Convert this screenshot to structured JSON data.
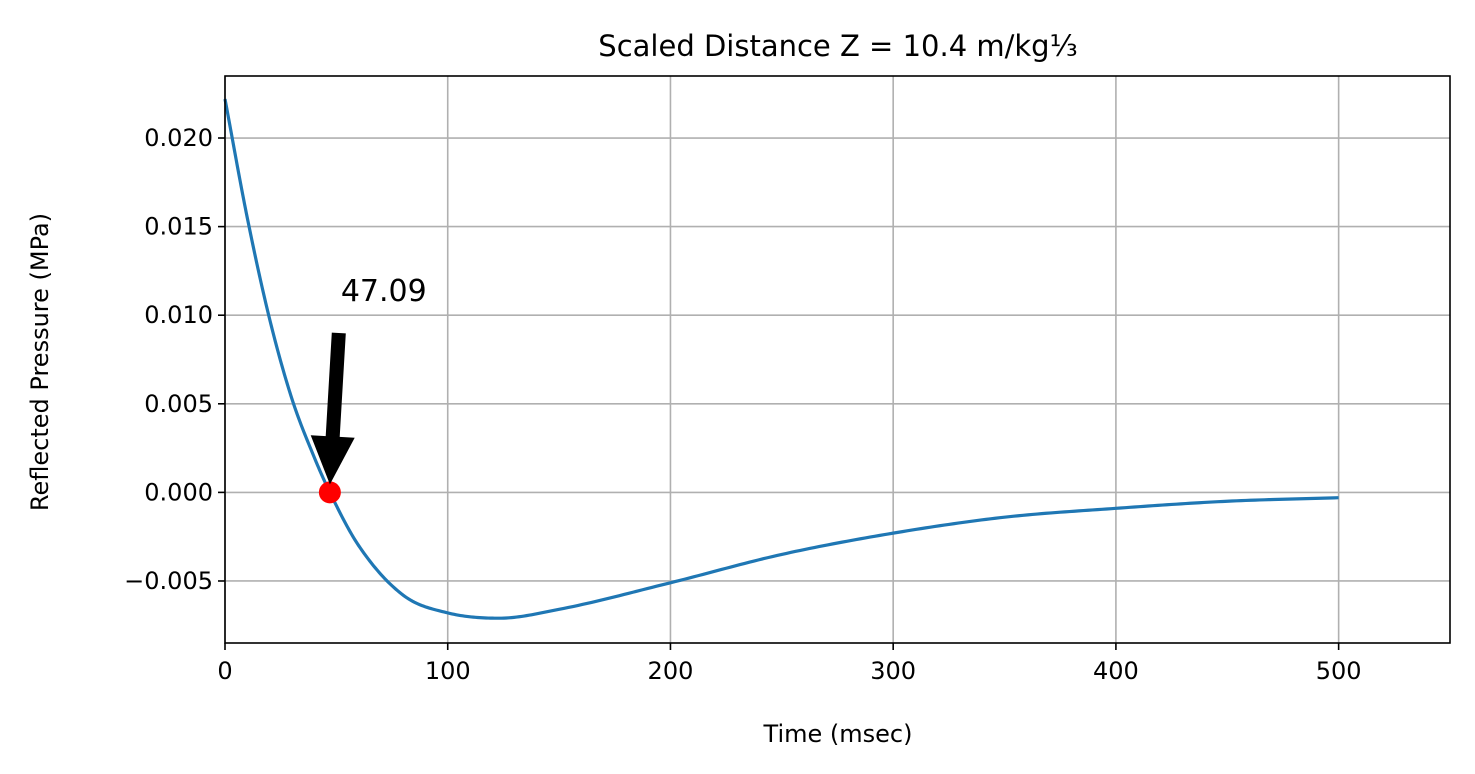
{
  "chart_data": {
    "type": "line",
    "title": "Scaled Distance Z = 10.4 m/kg⅓",
    "xlabel": "Time (msec)",
    "ylabel": "Reflected Pressure (MPa)",
    "xlim": [
      0,
      550
    ],
    "ylim": [
      -0.0085,
      0.0235
    ],
    "grid": true,
    "x_ticks": [
      0,
      100,
      200,
      300,
      400,
      500
    ],
    "x_tick_labels": [
      "0",
      "100",
      "200",
      "300",
      "400",
      "500"
    ],
    "y_ticks": [
      -0.005,
      0.0,
      0.005,
      0.01,
      0.015,
      0.02
    ],
    "y_tick_labels": [
      "−0.005",
      "0.000",
      "0.005",
      "0.010",
      "0.015",
      "0.020"
    ],
    "series": [
      {
        "color": "#1f77b4",
        "x": [
          0,
          10,
          20,
          30,
          40,
          47.09,
          60,
          80,
          100,
          123,
          150,
          200,
          250,
          300,
          350,
          400,
          450,
          500
        ],
        "y": [
          0.0222,
          0.0155,
          0.0098,
          0.0053,
          0.002,
          0.0,
          -0.003,
          -0.0058,
          -0.0068,
          -0.0071,
          -0.0066,
          -0.0051,
          -0.0035,
          -0.0023,
          -0.0014,
          -0.0009,
          -0.0005,
          -0.0003
        ]
      }
    ],
    "marker": {
      "x": 47.09,
      "y": 0.0,
      "color": "#ff0000"
    },
    "annotation": {
      "text": "47.09",
      "x": 47.09,
      "y": 0.0,
      "text_x": 52,
      "text_y": 0.0108
    }
  }
}
